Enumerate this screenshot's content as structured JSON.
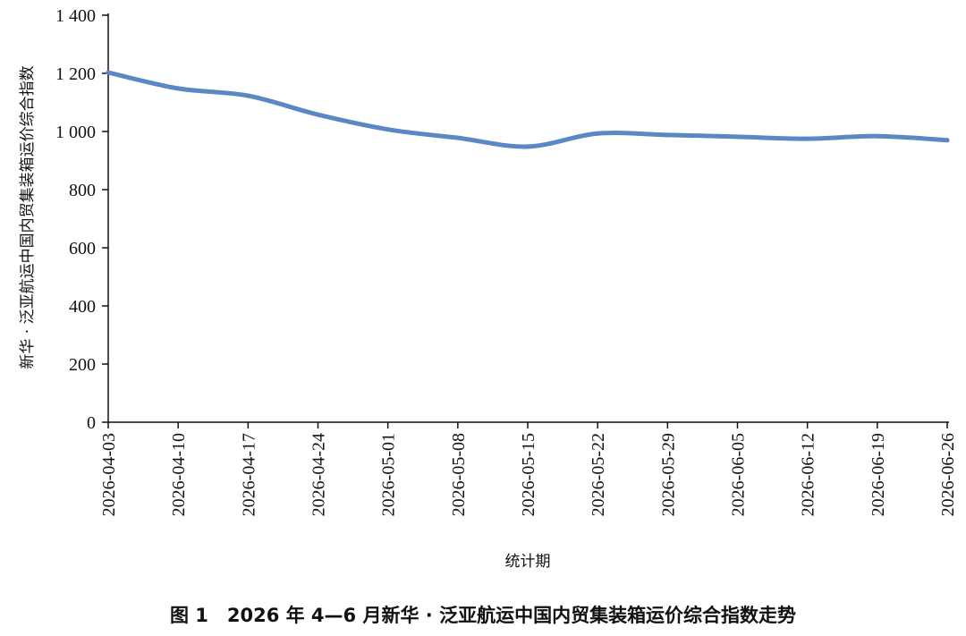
{
  "caption": "图 1　2026 年 4—6 月新华 · 泛亚航运中国内贸集装箱运价综合指数走势",
  "chart_data": {
    "type": "line",
    "title": "",
    "xlabel": "统计期",
    "ylabel": "新华 · 泛亚航运中国内贸集装箱运价综合指数",
    "ylim": [
      0,
      1400
    ],
    "yticks": [
      0,
      200,
      400,
      600,
      800,
      1000,
      1200,
      1400
    ],
    "ytick_labels": [
      "0",
      "200",
      "400",
      "600",
      "800",
      "1 000",
      "1 200",
      "1 400"
    ],
    "categories": [
      "2026-04-03",
      "2026-04-10",
      "2026-04-17",
      "2026-04-24",
      "2026-05-01",
      "2026-05-08",
      "2026-05-15",
      "2026-05-22",
      "2026-05-29",
      "2026-06-05",
      "2026-06-12",
      "2026-06-19",
      "2026-06-26"
    ],
    "grid": false,
    "line_color": "#5b87c5",
    "series": [
      {
        "values": [
          1203,
          1148,
          1123,
          1058,
          1007,
          978,
          948,
          993,
          988,
          982,
          975,
          984,
          970
        ]
      }
    ]
  }
}
